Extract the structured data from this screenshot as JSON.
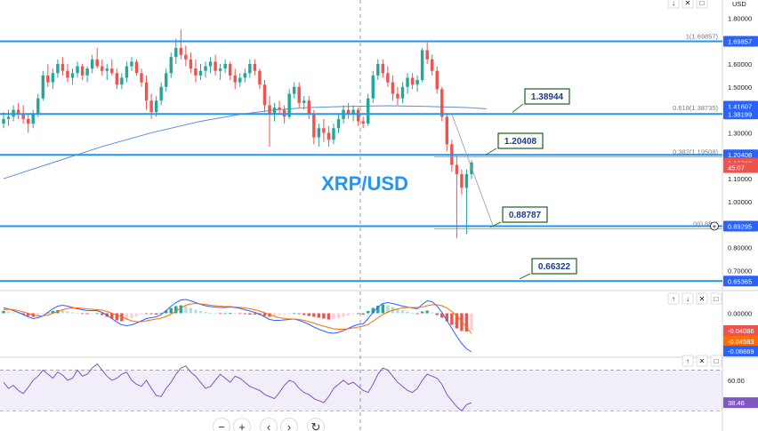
{
  "chart_data": {
    "type": "candlestick",
    "title": "XRP/USD",
    "currency": "USD",
    "price_axis": {
      "ticks": [
        "1.80000",
        "1.70000",
        "1.60000",
        "1.50000",
        "1.40000",
        "1.30000",
        "1.20000",
        "1.10000",
        "1.00000",
        "0.90000",
        "0.80000",
        "0.70000"
      ],
      "range": [
        0.62,
        1.84
      ]
    },
    "axis_badges": [
      {
        "label": "1.69857",
        "value": 1.69857,
        "color": "#2962ff"
      },
      {
        "label": "1.41607",
        "value": 1.41607,
        "color": "#2962ff"
      },
      {
        "label": "1.38199",
        "value": 1.38199,
        "color": "#2962ff"
      },
      {
        "label": "1.20408",
        "value": 1.20408,
        "color": "#2962ff"
      },
      {
        "label": "1.16760",
        "value": 1.1676,
        "color": "#ef5350"
      },
      {
        "label": "45:07",
        "value": 1.148,
        "color": "#ef5350"
      },
      {
        "label": "0.89295",
        "value": 0.89295,
        "color": "#2962ff"
      },
      {
        "label": "0.65365",
        "value": 0.65365,
        "color": "#2962ff"
      }
    ],
    "horizontal_levels": [
      1.69857,
      1.38199,
      1.20408,
      0.89295,
      0.65365
    ],
    "callouts": [
      {
        "label": "1.38944",
        "value": 1.38944
      },
      {
        "label": "1.20408",
        "value": 1.20408
      },
      {
        "label": "0.88787",
        "value": 0.88787
      },
      {
        "label": "0.66322",
        "value": 0.66322
      }
    ],
    "fib_labels": [
      {
        "label": "1(1.69857)",
        "value": 1.69857
      },
      {
        "label": "0.618(1.38735)",
        "value": 1.38735
      },
      {
        "label": "0.382(1.19508)",
        "value": 1.19508
      },
      {
        "label": "0(0.881)",
        "value": 0.881
      }
    ],
    "candles_ohlc": [
      [
        1.34,
        1.39,
        1.32,
        1.36
      ],
      [
        1.36,
        1.4,
        1.33,
        1.37
      ],
      [
        1.37,
        1.42,
        1.35,
        1.4
      ],
      [
        1.4,
        1.43,
        1.36,
        1.38
      ],
      [
        1.38,
        1.42,
        1.34,
        1.36
      ],
      [
        1.36,
        1.38,
        1.3,
        1.34
      ],
      [
        1.34,
        1.4,
        1.32,
        1.38
      ],
      [
        1.38,
        1.47,
        1.37,
        1.45
      ],
      [
        1.45,
        1.57,
        1.44,
        1.55
      ],
      [
        1.55,
        1.6,
        1.5,
        1.52
      ],
      [
        1.52,
        1.58,
        1.49,
        1.56
      ],
      [
        1.56,
        1.62,
        1.54,
        1.6
      ],
      [
        1.6,
        1.63,
        1.55,
        1.57
      ],
      [
        1.57,
        1.6,
        1.52,
        1.54
      ],
      [
        1.54,
        1.58,
        1.51,
        1.56
      ],
      [
        1.56,
        1.61,
        1.54,
        1.59
      ],
      [
        1.59,
        1.6,
        1.53,
        1.55
      ],
      [
        1.55,
        1.59,
        1.52,
        1.58
      ],
      [
        1.58,
        1.64,
        1.56,
        1.62
      ],
      [
        1.62,
        1.67,
        1.58,
        1.59
      ],
      [
        1.59,
        1.62,
        1.55,
        1.57
      ],
      [
        1.57,
        1.6,
        1.53,
        1.58
      ],
      [
        1.58,
        1.62,
        1.55,
        1.56
      ],
      [
        1.56,
        1.58,
        1.49,
        1.51
      ],
      [
        1.51,
        1.56,
        1.49,
        1.54
      ],
      [
        1.54,
        1.61,
        1.52,
        1.59
      ],
      [
        1.59,
        1.63,
        1.57,
        1.61
      ],
      [
        1.61,
        1.62,
        1.55,
        1.56
      ],
      [
        1.56,
        1.58,
        1.5,
        1.52
      ],
      [
        1.52,
        1.55,
        1.4,
        1.44
      ],
      [
        1.44,
        1.47,
        1.36,
        1.39
      ],
      [
        1.39,
        1.46,
        1.37,
        1.44
      ],
      [
        1.44,
        1.52,
        1.42,
        1.5
      ],
      [
        1.5,
        1.58,
        1.48,
        1.56
      ],
      [
        1.56,
        1.65,
        1.54,
        1.63
      ],
      [
        1.63,
        1.71,
        1.6,
        1.67
      ],
      [
        1.67,
        1.75,
        1.62,
        1.64
      ],
      [
        1.64,
        1.68,
        1.59,
        1.62
      ],
      [
        1.62,
        1.65,
        1.56,
        1.58
      ],
      [
        1.58,
        1.62,
        1.52,
        1.55
      ],
      [
        1.55,
        1.6,
        1.53,
        1.57
      ],
      [
        1.57,
        1.61,
        1.54,
        1.59
      ],
      [
        1.59,
        1.63,
        1.56,
        1.61
      ],
      [
        1.61,
        1.64,
        1.55,
        1.57
      ],
      [
        1.57,
        1.6,
        1.53,
        1.58
      ],
      [
        1.58,
        1.62,
        1.56,
        1.6
      ],
      [
        1.6,
        1.61,
        1.53,
        1.55
      ],
      [
        1.55,
        1.58,
        1.49,
        1.52
      ],
      [
        1.52,
        1.56,
        1.5,
        1.54
      ],
      [
        1.54,
        1.58,
        1.52,
        1.56
      ],
      [
        1.56,
        1.62,
        1.54,
        1.6
      ],
      [
        1.6,
        1.62,
        1.55,
        1.57
      ],
      [
        1.57,
        1.58,
        1.49,
        1.51
      ],
      [
        1.51,
        1.53,
        1.39,
        1.42
      ],
      [
        1.42,
        1.46,
        1.24,
        1.38
      ],
      [
        1.38,
        1.43,
        1.35,
        1.41
      ],
      [
        1.41,
        1.44,
        1.38,
        1.4
      ],
      [
        1.4,
        1.42,
        1.34,
        1.37
      ],
      [
        1.37,
        1.49,
        1.36,
        1.47
      ],
      [
        1.47,
        1.52,
        1.45,
        1.5
      ],
      [
        1.5,
        1.52,
        1.41,
        1.43
      ],
      [
        1.43,
        1.46,
        1.4,
        1.44
      ],
      [
        1.44,
        1.46,
        1.36,
        1.38
      ],
      [
        1.38,
        1.4,
        1.25,
        1.28
      ],
      [
        1.28,
        1.34,
        1.24,
        1.32
      ],
      [
        1.32,
        1.36,
        1.26,
        1.3
      ],
      [
        1.3,
        1.33,
        1.24,
        1.27
      ],
      [
        1.27,
        1.34,
        1.25,
        1.32
      ],
      [
        1.32,
        1.38,
        1.3,
        1.36
      ],
      [
        1.36,
        1.42,
        1.34,
        1.4
      ],
      [
        1.4,
        1.43,
        1.36,
        1.38
      ],
      [
        1.38,
        1.42,
        1.35,
        1.4
      ],
      [
        1.4,
        1.41,
        1.33,
        1.35
      ],
      [
        1.35,
        1.37,
        1.32,
        1.34
      ],
      [
        1.34,
        1.47,
        1.33,
        1.45
      ],
      [
        1.45,
        1.57,
        1.43,
        1.55
      ],
      [
        1.55,
        1.62,
        1.53,
        1.6
      ],
      [
        1.6,
        1.62,
        1.54,
        1.56
      ],
      [
        1.56,
        1.59,
        1.5,
        1.52
      ],
      [
        1.52,
        1.55,
        1.44,
        1.47
      ],
      [
        1.47,
        1.5,
        1.42,
        1.45
      ],
      [
        1.45,
        1.52,
        1.43,
        1.5
      ],
      [
        1.5,
        1.56,
        1.47,
        1.54
      ],
      [
        1.54,
        1.56,
        1.49,
        1.51
      ],
      [
        1.51,
        1.55,
        1.48,
        1.53
      ],
      [
        1.53,
        1.67,
        1.52,
        1.66
      ],
      [
        1.66,
        1.7,
        1.6,
        1.62
      ],
      [
        1.62,
        1.64,
        1.55,
        1.57
      ],
      [
        1.57,
        1.59,
        1.47,
        1.49
      ],
      [
        1.49,
        1.5,
        1.35,
        1.37
      ],
      [
        1.37,
        1.38,
        1.22,
        1.25
      ],
      [
        1.25,
        1.27,
        1.13,
        1.16
      ],
      [
        1.16,
        1.2,
        0.84,
        1.12
      ],
      [
        1.12,
        1.14,
        1.03,
        1.06
      ],
      [
        1.06,
        1.14,
        0.86,
        1.12
      ],
      [
        1.12,
        1.18,
        1.1,
        1.17
      ]
    ],
    "moving_average": [
      [
        0,
        1.1
      ],
      [
        10,
        1.17
      ],
      [
        20,
        1.24
      ],
      [
        30,
        1.3
      ],
      [
        40,
        1.35
      ],
      [
        48,
        1.38
      ],
      [
        55,
        1.4
      ],
      [
        62,
        1.41
      ],
      [
        70,
        1.415
      ],
      [
        78,
        1.418
      ],
      [
        86,
        1.415
      ],
      [
        94,
        1.41
      ],
      [
        98,
        1.405
      ]
    ],
    "macd": {
      "zero_label": "0.00000",
      "value_labels": [
        {
          "label": "-0.04086",
          "color": "#ef5350"
        },
        {
          "label": "-0.04583",
          "color": "#ff6d00"
        },
        {
          "label": "-0.08669",
          "color": "#2962ff"
        }
      ],
      "histogram": [
        0.005,
        0.004,
        0.002,
        0.0,
        -0.003,
        -0.006,
        -0.008,
        -0.006,
        -0.003,
        0.002,
        0.005,
        0.007,
        0.006,
        0.004,
        0.002,
        0.001,
        -0.001,
        -0.002,
        -0.001,
        0.0,
        -0.004,
        -0.008,
        -0.012,
        -0.016,
        -0.018,
        -0.015,
        -0.011,
        -0.007,
        -0.003,
        0.0,
        -0.002,
        -0.003,
        0.001,
        0.006,
        0.012,
        0.016,
        0.018,
        0.016,
        0.012,
        0.008,
        0.005,
        0.003,
        0.001,
        0.0,
        -0.001,
        0.0,
        0.001,
        0.0,
        -0.001,
        -0.002,
        -0.003,
        -0.003,
        -0.004,
        -0.006,
        -0.008,
        -0.006,
        -0.004,
        -0.002,
        -0.001,
        0.0,
        -0.002,
        -0.004,
        -0.006,
        -0.008,
        -0.01,
        -0.012,
        -0.014,
        -0.013,
        -0.011,
        -0.008,
        -0.005,
        -0.002,
        0.0,
        -0.003,
        0.005,
        0.012,
        0.017,
        0.02,
        0.018,
        0.014,
        0.01,
        0.007,
        0.004,
        0.001,
        -0.002,
        0.004,
        0.006,
        0.002,
        -0.004,
        -0.01,
        -0.018,
        -0.026,
        -0.034,
        -0.04,
        -0.041,
        -0.04
      ],
      "macd_line": [
        0.012,
        0.01,
        0.006,
        0.002,
        -0.003,
        -0.008,
        -0.012,
        -0.01,
        -0.006,
        0.002,
        0.01,
        0.016,
        0.018,
        0.016,
        0.013,
        0.01,
        0.008,
        0.006,
        0.006,
        0.006,
        0.002,
        -0.004,
        -0.012,
        -0.02,
        -0.026,
        -0.028,
        -0.026,
        -0.022,
        -0.017,
        -0.012,
        -0.01,
        -0.008,
        -0.003,
        0.006,
        0.016,
        0.024,
        0.03,
        0.031,
        0.028,
        0.024,
        0.02,
        0.017,
        0.015,
        0.014,
        0.013,
        0.013,
        0.014,
        0.013,
        0.011,
        0.008,
        0.005,
        0.002,
        -0.002,
        -0.008,
        -0.014,
        -0.016,
        -0.016,
        -0.015,
        -0.014,
        -0.013,
        -0.016,
        -0.02,
        -0.025,
        -0.031,
        -0.036,
        -0.04,
        -0.044,
        -0.045,
        -0.043,
        -0.039,
        -0.034,
        -0.029,
        -0.025,
        -0.024,
        -0.012,
        0.002,
        0.014,
        0.022,
        0.024,
        0.022,
        0.019,
        0.016,
        0.014,
        0.012,
        0.01,
        0.02,
        0.028,
        0.026,
        0.016,
        0.002,
        -0.016,
        -0.034,
        -0.052,
        -0.068,
        -0.08,
        -0.087
      ],
      "signal_line": [
        0.008,
        0.009,
        0.008,
        0.006,
        0.003,
        0.0,
        -0.004,
        -0.006,
        -0.006,
        -0.004,
        0.0,
        0.004,
        0.008,
        0.011,
        0.012,
        0.012,
        0.011,
        0.01,
        0.009,
        0.008,
        0.007,
        0.004,
        0.0,
        -0.004,
        -0.008,
        -0.013,
        -0.017,
        -0.019,
        -0.019,
        -0.017,
        -0.015,
        -0.013,
        -0.011,
        -0.007,
        -0.002,
        0.005,
        0.012,
        0.018,
        0.021,
        0.022,
        0.021,
        0.02,
        0.018,
        0.017,
        0.016,
        0.015,
        0.015,
        0.014,
        0.013,
        0.012,
        0.01,
        0.008,
        0.005,
        0.001,
        -0.003,
        -0.007,
        -0.01,
        -0.012,
        -0.013,
        -0.013,
        -0.014,
        -0.016,
        -0.019,
        -0.022,
        -0.026,
        -0.029,
        -0.032,
        -0.035,
        -0.036,
        -0.036,
        -0.035,
        -0.033,
        -0.031,
        -0.029,
        -0.025,
        -0.018,
        -0.01,
        -0.003,
        0.003,
        0.007,
        0.01,
        0.012,
        0.013,
        0.013,
        0.013,
        0.014,
        0.017,
        0.019,
        0.019,
        0.017,
        0.012,
        0.004,
        -0.006,
        -0.018,
        -0.032,
        -0.046
      ],
      "range": [
        -0.095,
        0.045
      ]
    },
    "rsi": {
      "tick_label": "60.00",
      "tick_value": 60,
      "value_label": "38.46",
      "upper": 70,
      "lower": 30,
      "range": [
        25,
        80
      ],
      "values": [
        58,
        52,
        55,
        50,
        47,
        53,
        60,
        64,
        70,
        66,
        62,
        68,
        65,
        60,
        62,
        70,
        64,
        66,
        72,
        76,
        70,
        64,
        60,
        62,
        66,
        68,
        60,
        56,
        54,
        60,
        52,
        45,
        44,
        52,
        58,
        66,
        72,
        74,
        68,
        64,
        58,
        52,
        54,
        60,
        66,
        62,
        58,
        64,
        62,
        58,
        54,
        52,
        50,
        46,
        44,
        42,
        48,
        55,
        60,
        58,
        52,
        48,
        46,
        42,
        40,
        38,
        44,
        52,
        56,
        60,
        56,
        58,
        54,
        50,
        48,
        56,
        66,
        72,
        70,
        64,
        58,
        54,
        50,
        48,
        52,
        60,
        66,
        64,
        62,
        56,
        46,
        40,
        34,
        30,
        36,
        38
      ],
      "color": "#7e57c2"
    }
  },
  "toolbar": {
    "zoom_out_icon": "−",
    "zoom_in_icon": "+",
    "scroll_left_icon": "‹",
    "scroll_right_icon": "›",
    "reset_icon": "↻"
  },
  "pane_controls": {
    "move_up_icon": "↑",
    "move_down_icon": "↓",
    "close_icon": "✕",
    "maximize_icon": "□"
  }
}
